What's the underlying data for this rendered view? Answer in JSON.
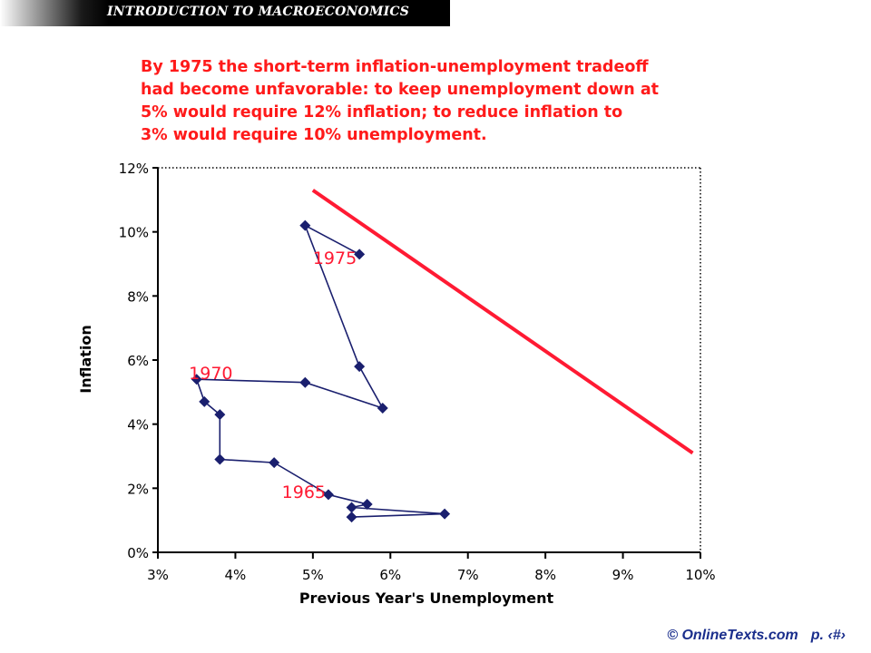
{
  "header": {
    "title": "INTRODUCTION TO MACROECONOMICS"
  },
  "caption_lines": [
    "By 1975 the short-term inflation-unemployment tradeoff",
    "had become unfavorable: to keep unemployment down at",
    "5% would require 12% inflation; to reduce inflation to",
    "3% would require 10% unemployment."
  ],
  "footer": {
    "copyright": "© OnlineTexts.com",
    "page": "p. ‹#›"
  },
  "colors": {
    "series": "#1a1f6e",
    "tradeoff": "#ff1a33",
    "annotation": "#ff1a33",
    "footer": "#1a2e8c"
  },
  "chart_data": {
    "type": "scatter",
    "xlabel": "Previous Year's Unemployment",
    "ylabel": "Inflation",
    "xlim": [
      3,
      10
    ],
    "ylim": [
      0,
      12
    ],
    "x_ticks": [
      "3%",
      "4%",
      "5%",
      "6%",
      "7%",
      "8%",
      "9%",
      "10%"
    ],
    "y_ticks": [
      "0%",
      "2%",
      "4%",
      "6%",
      "8%",
      "10%",
      "12%"
    ],
    "grid": false,
    "series": [
      {
        "kind": "connected-scatter",
        "points": [
          [
            5.5,
            1.1
          ],
          [
            6.7,
            1.2
          ],
          [
            5.5,
            1.4
          ],
          [
            5.7,
            1.5
          ],
          [
            5.2,
            1.8
          ],
          [
            4.5,
            2.8
          ],
          [
            3.8,
            2.9
          ],
          [
            3.8,
            4.3
          ],
          [
            3.6,
            4.7
          ],
          [
            3.5,
            5.4
          ],
          [
            4.9,
            5.3
          ],
          [
            5.9,
            4.5
          ],
          [
            5.6,
            5.8
          ],
          [
            4.9,
            10.2
          ],
          [
            5.6,
            9.3
          ]
        ]
      },
      {
        "kind": "tradeoff-line",
        "points": [
          [
            5.0,
            11.3
          ],
          [
            9.9,
            3.1
          ]
        ]
      }
    ],
    "annotations": [
      {
        "text": "1975",
        "x": 5.0,
        "y": 9.0
      },
      {
        "text": "1970",
        "x": 3.4,
        "y": 5.4
      },
      {
        "text": "1965",
        "x": 4.6,
        "y": 1.7
      }
    ]
  }
}
